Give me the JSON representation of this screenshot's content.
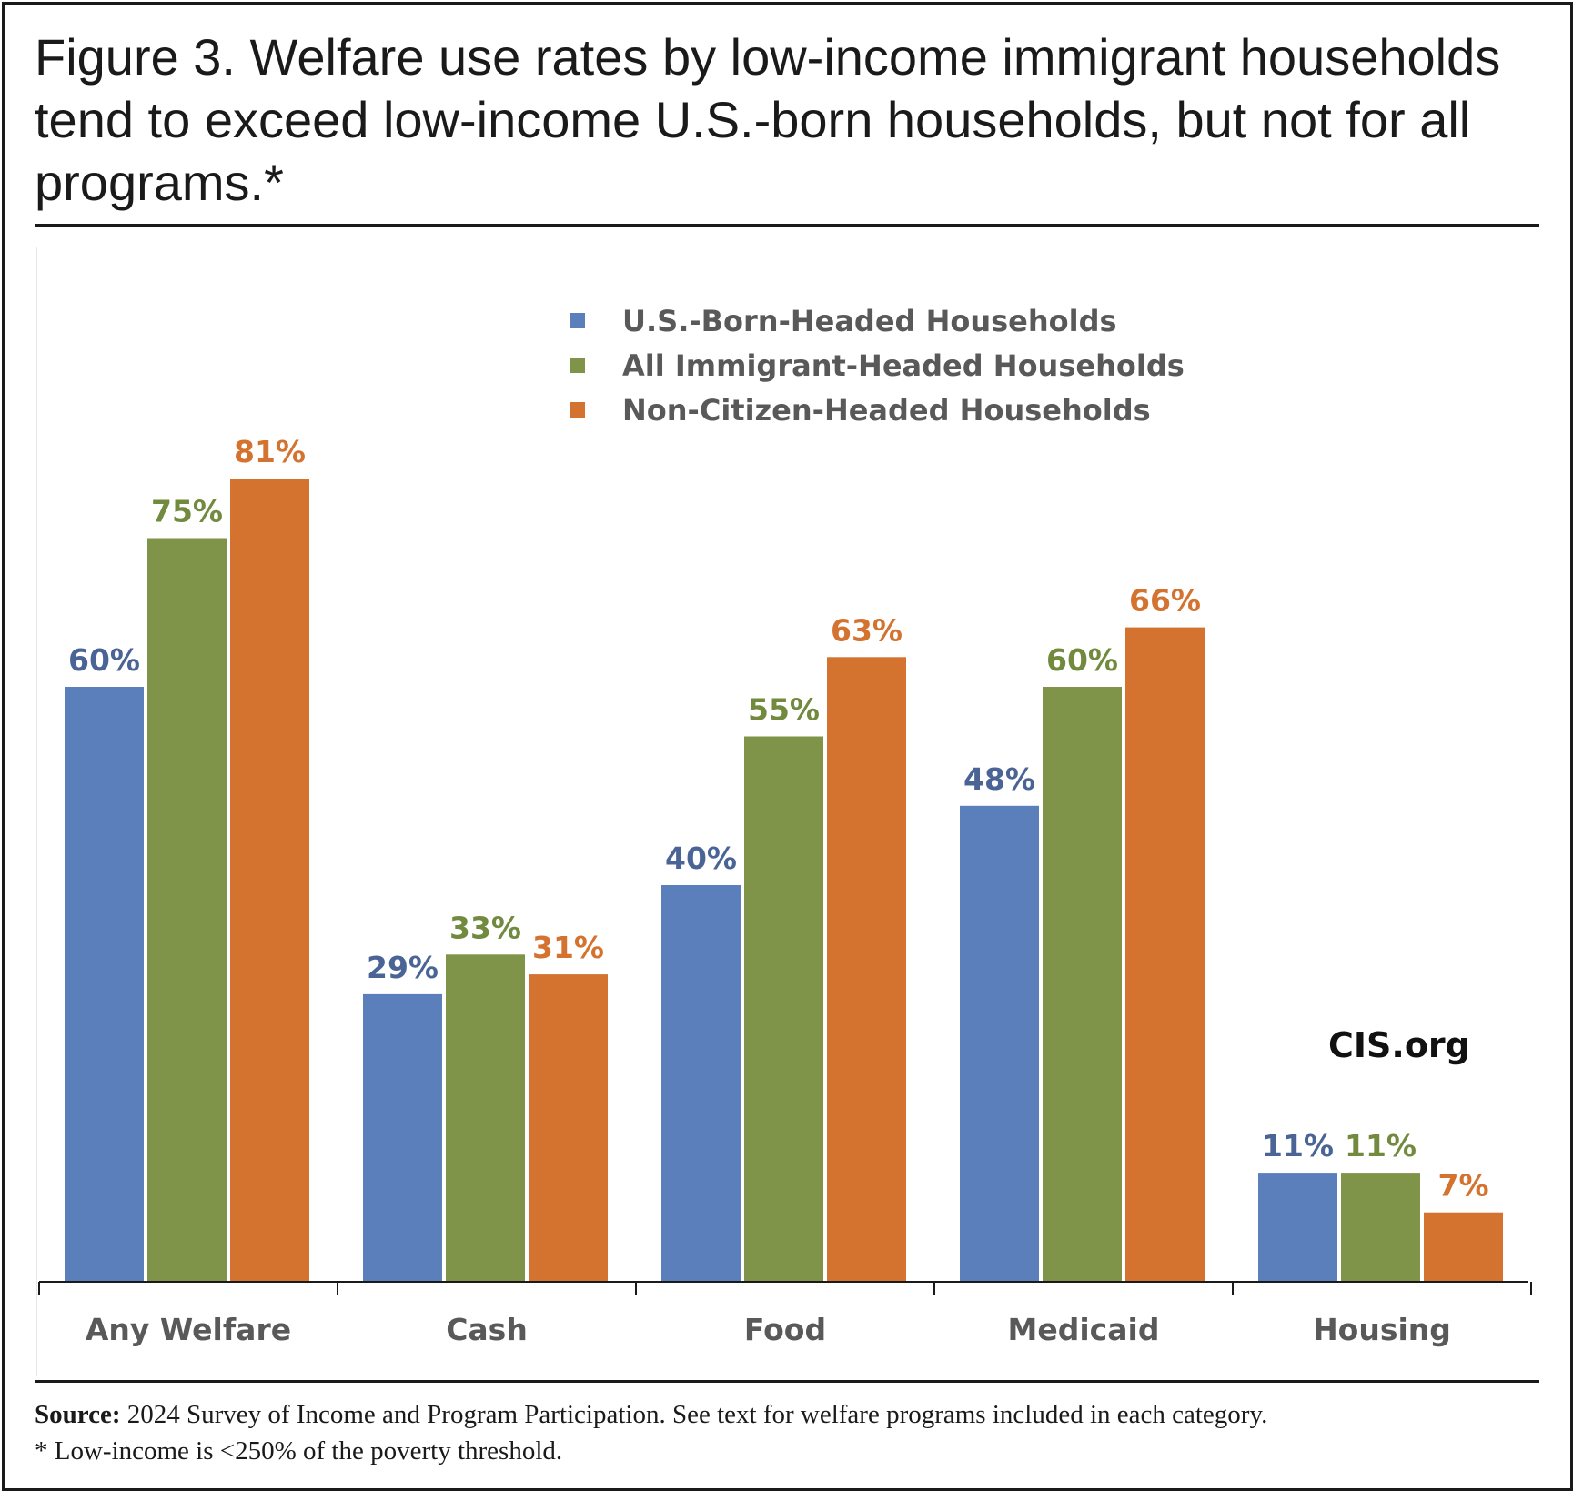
{
  "figure": {
    "title": "Figure 3. Welfare use rates by low-income immigrant households tend to exceed low-income U.S.-born households, but not for all programs.*",
    "brand": "CIS.org",
    "source_label": "Source:",
    "source_text": "2024 Survey of Income and Program Participation. See text for welfare programs included in each category.",
    "footnote": "* Low-income is <250% of the poverty threshold."
  },
  "chart_data": {
    "type": "bar",
    "title": "",
    "xlabel": "",
    "ylabel": "",
    "categories": [
      "Any Welfare",
      "Cash",
      "Food",
      "Medicaid",
      "Housing"
    ],
    "ylim": [
      0,
      90
    ],
    "grid": false,
    "legend_position": "top-center",
    "series": [
      {
        "name": "U.S.-Born-Headed Households",
        "color": "#5b7fba",
        "label_color": "#4a6496",
        "values": [
          60,
          29,
          40,
          48,
          11
        ]
      },
      {
        "name": "All Immigrant-Headed Households",
        "color": "#7f9449",
        "label_color": "#718a3e",
        "values": [
          75,
          33,
          55,
          60,
          11
        ]
      },
      {
        "name": "Non-Citizen-Headed Households",
        "color": "#d4722f",
        "label_color": "#d4722f",
        "values": [
          81,
          31,
          63,
          66,
          7
        ]
      }
    ],
    "data_labels": [
      [
        "60%",
        "29%",
        "40%",
        "48%",
        "11%"
      ],
      [
        "75%",
        "33%",
        "55%",
        "60%",
        "11%"
      ],
      [
        "81%",
        "31%",
        "63%",
        "66%",
        "7%"
      ]
    ]
  }
}
